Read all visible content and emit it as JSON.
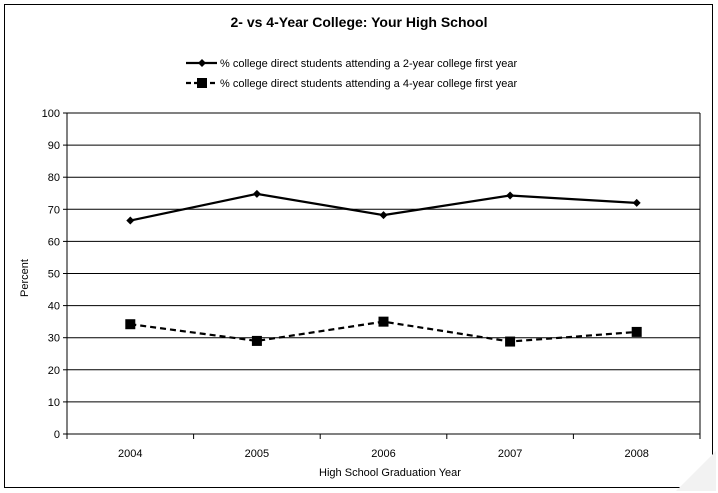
{
  "chart_data": {
    "type": "line",
    "title": "2- vs 4-Year College: Your High School",
    "xlabel": "High School Graduation Year",
    "ylabel": "Percent",
    "categories": [
      "2004",
      "2005",
      "2006",
      "2007",
      "2008"
    ],
    "ylim": [
      0,
      100
    ],
    "yticks": [
      0,
      10,
      20,
      30,
      40,
      50,
      60,
      70,
      80,
      90,
      100
    ],
    "grid": true,
    "legend_position": "top",
    "series": [
      {
        "name": "% college direct students attending a 2-year college first year",
        "values": [
          66.5,
          74.8,
          68.2,
          74.3,
          72.0
        ],
        "color": "#000000",
        "line_style": "solid",
        "marker": "diamond"
      },
      {
        "name": "% college direct students attending a 4-year college first year",
        "values": [
          34.2,
          29.0,
          35.0,
          28.8,
          31.8
        ],
        "color": "#000000",
        "line_style": "dashed",
        "marker": "square"
      }
    ]
  }
}
